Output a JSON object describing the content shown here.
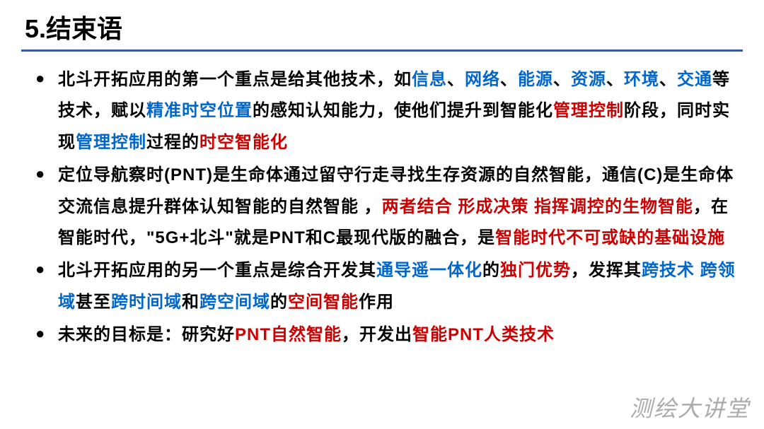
{
  "colors": {
    "title_underline": "#3b5998",
    "text_black": "#000000",
    "text_blue": "#0066cc",
    "text_red": "#cc0000",
    "watermark_gray": "#888888",
    "background": "#ffffff"
  },
  "typography": {
    "title_fontsize": 36,
    "body_fontsize": 24,
    "line_height": 1.85,
    "watermark_fontsize": 32
  },
  "title": "5.结束语",
  "watermark": "测绘大讲堂",
  "bullets": [
    {
      "segments": [
        {
          "text": "北斗开拓应用的第一个重点是给其他技术，如",
          "color": "black"
        },
        {
          "text": "信息",
          "color": "blue"
        },
        {
          "text": "、",
          "color": "black"
        },
        {
          "text": "网络",
          "color": "blue"
        },
        {
          "text": "、",
          "color": "black"
        },
        {
          "text": "能源",
          "color": "blue"
        },
        {
          "text": "、",
          "color": "black"
        },
        {
          "text": "资源",
          "color": "blue"
        },
        {
          "text": "、",
          "color": "black"
        },
        {
          "text": "环境",
          "color": "blue"
        },
        {
          "text": "、",
          "color": "black"
        },
        {
          "text": "交通",
          "color": "blue"
        },
        {
          "text": "等技术，赋以",
          "color": "black"
        },
        {
          "text": "精准时空位置",
          "color": "blue"
        },
        {
          "text": "的感知认知能力，使他们提升到智能化",
          "color": "black"
        },
        {
          "text": "管理控制",
          "color": "red"
        },
        {
          "text": "阶段，同时实现",
          "color": "black"
        },
        {
          "text": "管理控制",
          "color": "blue"
        },
        {
          "text": "过程的",
          "color": "black"
        },
        {
          "text": "时空智能化",
          "color": "red"
        }
      ]
    },
    {
      "segments": [
        {
          "text": "定位导航察时(PNT)是生命体通过留守行走寻找生存资源的自然智能，通信(C)是生命体交流信息提升群体认知智能的自然智能 ，",
          "color": "black"
        },
        {
          "text": "两者结合 形成决策 指挥调控的生物智能",
          "color": "red"
        },
        {
          "text": "，在智能时代，\"5G+北斗\"就是PNT和C最现代版的融合，是",
          "color": "black"
        },
        {
          "text": "智能时代不可或缺的基础设施",
          "color": "red"
        }
      ]
    },
    {
      "segments": [
        {
          "text": "北斗开拓应用的另一个重点是综合开发其",
          "color": "black"
        },
        {
          "text": "通导遥一体化",
          "color": "blue"
        },
        {
          "text": "的",
          "color": "black"
        },
        {
          "text": "独门优势",
          "color": "red"
        },
        {
          "text": "，发挥其",
          "color": "black"
        },
        {
          "text": "跨技术 跨领域",
          "color": "blue"
        },
        {
          "text": "甚至",
          "color": "black"
        },
        {
          "text": "跨时间域",
          "color": "blue"
        },
        {
          "text": "和",
          "color": "black"
        },
        {
          "text": "跨空间域",
          "color": "blue"
        },
        {
          "text": "的",
          "color": "black"
        },
        {
          "text": "空间智能",
          "color": "red"
        },
        {
          "text": "作用",
          "color": "black"
        }
      ]
    },
    {
      "segments": [
        {
          "text": "未来的目标是：研究好",
          "color": "black"
        },
        {
          "text": "PNT自然智能",
          "color": "red"
        },
        {
          "text": "，开发出",
          "color": "black"
        },
        {
          "text": "智能PNT人类技术",
          "color": "red"
        }
      ]
    }
  ]
}
